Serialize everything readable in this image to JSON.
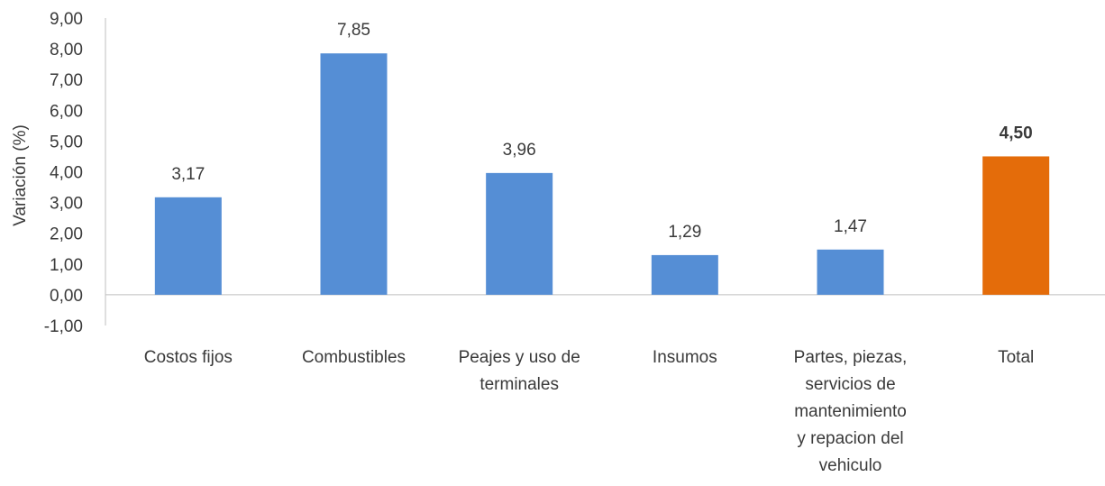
{
  "chart_data": {
    "type": "bar",
    "ylabel": "Variación (%)",
    "ylim": [
      -1,
      9
    ],
    "yticks": [
      "9,00",
      "8,00",
      "7,00",
      "6,00",
      "5,00",
      "4,00",
      "3,00",
      "2,00",
      "1,00",
      "0,00",
      "-1,00"
    ],
    "categories": [
      [
        "Costos fijos"
      ],
      [
        "Combustibles"
      ],
      [
        "Peajes y uso de",
        "terminales"
      ],
      [
        "Insumos"
      ],
      [
        "Partes, piezas,",
        "servicios de",
        "mantenimiento",
        "y repacion del",
        "vehiculo"
      ],
      [
        "Total"
      ]
    ],
    "values": [
      3.17,
      7.85,
      3.96,
      1.29,
      1.47,
      4.5
    ],
    "value_labels": [
      "3,17",
      "7,85",
      "3,96",
      "1,29",
      "1,47",
      "4,50"
    ],
    "colors": [
      "#558ed5",
      "#558ed5",
      "#558ed5",
      "#558ed5",
      "#558ed5",
      "#e46c0a"
    ],
    "bold_labels": [
      false,
      false,
      false,
      false,
      false,
      true
    ],
    "grid": false
  }
}
